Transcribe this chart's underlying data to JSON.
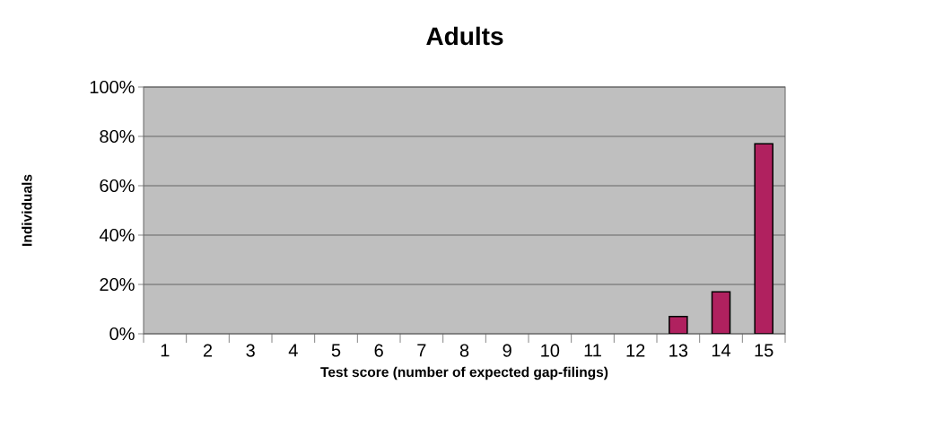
{
  "chart_data": {
    "type": "bar",
    "title": "Adults",
    "xlabel": "Test score (number of expected gap-filings)",
    "ylabel": "Individuals",
    "categories": [
      "1",
      "2",
      "3",
      "4",
      "5",
      "6",
      "7",
      "8",
      "9",
      "10",
      "11",
      "12",
      "13",
      "14",
      "15"
    ],
    "values": [
      0,
      0,
      0,
      0,
      0,
      0,
      0,
      0,
      0,
      0,
      0,
      0,
      7,
      17,
      77
    ],
    "color": "#b0215f",
    "ylim": [
      0,
      100
    ],
    "yticks": [
      {
        "value": 0,
        "label": "0%"
      },
      {
        "value": 20,
        "label": "20%"
      },
      {
        "value": 40,
        "label": "40%"
      },
      {
        "value": 60,
        "label": "60%"
      },
      {
        "value": 80,
        "label": "80%"
      },
      {
        "value": 100,
        "label": "100%"
      }
    ],
    "grid": "y"
  }
}
